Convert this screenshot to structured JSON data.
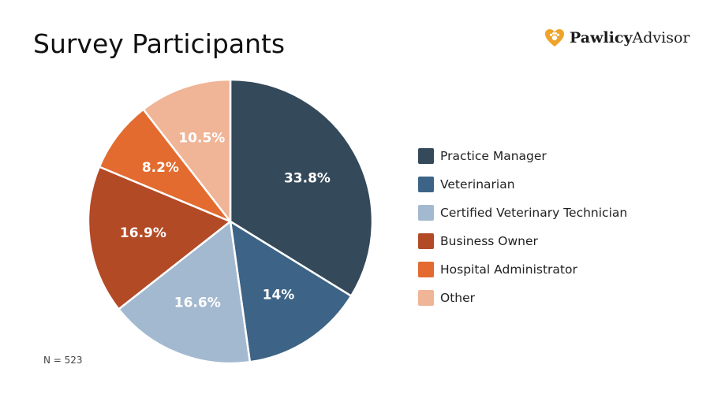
{
  "brand": {
    "name_bold": "Pawlicy",
    "name_regular": "Advisor",
    "icon": "heart-paw-icon",
    "colors": {
      "heart_outer": "#f0a32a",
      "heart_inner": "#e36a2a"
    }
  },
  "chart_data": {
    "type": "pie",
    "title": "Survey Participants",
    "note": "N = 523",
    "legend_position": "right",
    "start_angle_deg": 0,
    "direction": "clockwise",
    "slices": [
      {
        "label": "Practice Manager",
        "value": 33.8,
        "display": "33.8%",
        "color": "#34495a"
      },
      {
        "label": "Veterinarian",
        "value": 14.0,
        "display": "14%",
        "color": "#3d6486"
      },
      {
        "label": "Certified Veterinary Technician",
        "value": 16.6,
        "display": "16.6%",
        "color": "#a3b9cf"
      },
      {
        "label": "Business Owner",
        "value": 16.9,
        "display": "16.9%",
        "color": "#b34a26"
      },
      {
        "label": "Hospital Administrator",
        "value": 8.2,
        "display": "8.2%",
        "color": "#e36b2f"
      },
      {
        "label": "Other",
        "value": 10.5,
        "display": "10.5%",
        "color": "#f0b496"
      }
    ]
  }
}
